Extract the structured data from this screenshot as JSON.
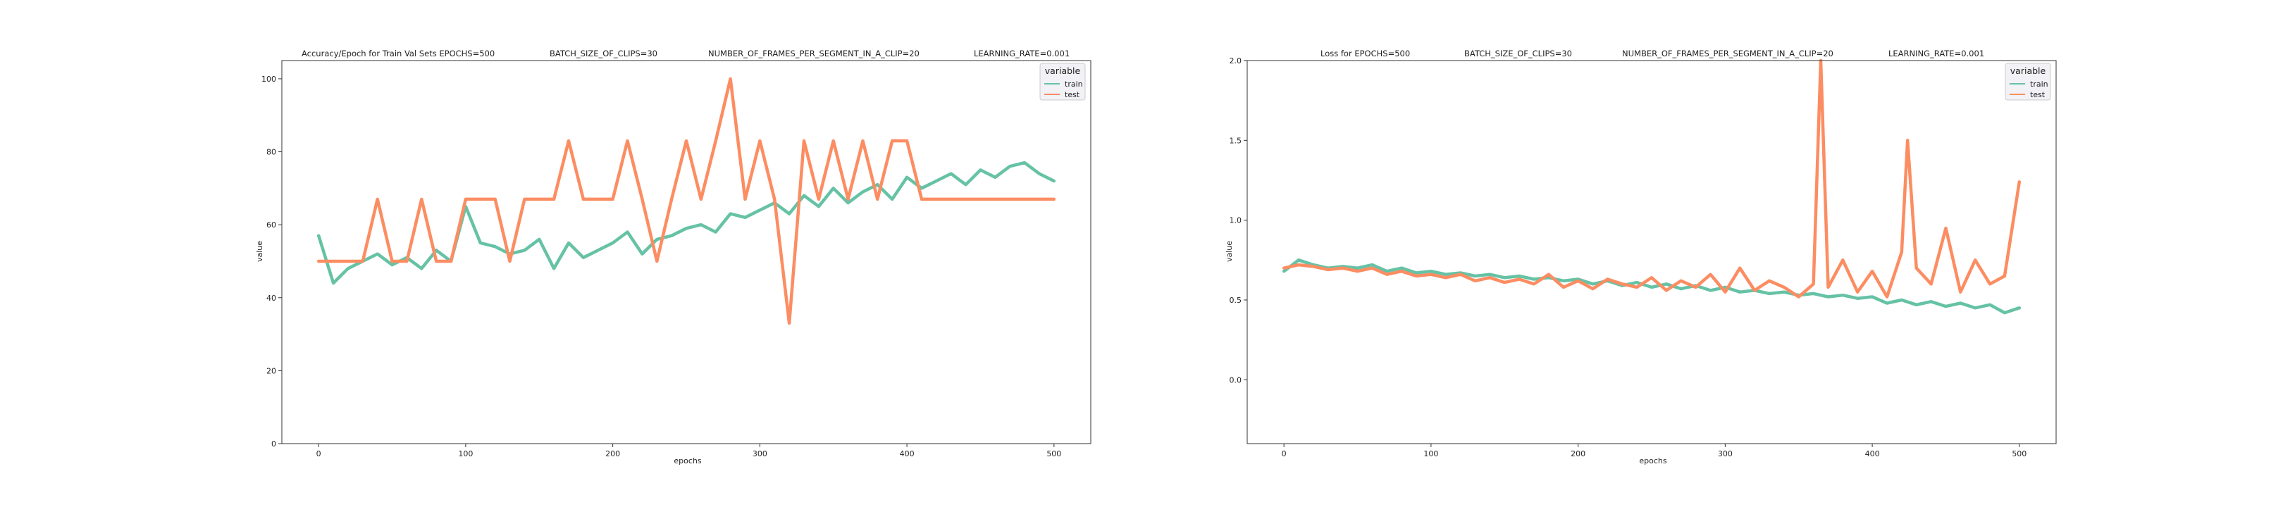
{
  "chart_data": [
    {
      "type": "line",
      "title_parts": [
        "Accuracy/Epoch for Train Val Sets EPOCHS=500",
        "BATCH_SIZE_OF_CLIPS=30",
        "NUMBER_OF_FRAMES_PER_SEGMENT_IN_A_CLIP=20",
        "LEARNING_RATE=0.001"
      ],
      "xlabel": "epochs",
      "ylabel": "value",
      "xlim": [
        -25,
        525
      ],
      "ylim": [
        0,
        105
      ],
      "xticks": [
        0,
        100,
        200,
        300,
        400,
        500
      ],
      "yticks": [
        0,
        20,
        40,
        60,
        80,
        100
      ],
      "ytick_labels": [
        "0",
        "20",
        "40",
        "60",
        "80",
        "100"
      ],
      "grid": false,
      "legend": {
        "title": "variable",
        "placement": "top-right"
      },
      "series": [
        {
          "name": "train",
          "color": "#66c2a5",
          "x": [
            0,
            10,
            20,
            30,
            40,
            50,
            60,
            70,
            80,
            90,
            100,
            110,
            120,
            130,
            140,
            150,
            160,
            170,
            180,
            190,
            200,
            210,
            220,
            230,
            240,
            250,
            260,
            270,
            280,
            290,
            300,
            310,
            320,
            330,
            340,
            350,
            360,
            370,
            380,
            390,
            400,
            410,
            420,
            430,
            440,
            450,
            460,
            470,
            480,
            490,
            500
          ],
          "values": [
            57,
            44,
            48,
            50,
            52,
            49,
            51,
            48,
            53,
            50,
            65,
            55,
            54,
            52,
            53,
            56,
            48,
            55,
            51,
            53,
            55,
            58,
            52,
            56,
            57,
            59,
            60,
            58,
            63,
            62,
            64,
            66,
            63,
            68,
            65,
            70,
            66,
            69,
            71,
            67,
            73,
            70,
            72,
            74,
            71,
            75,
            73,
            76,
            77,
            74,
            72
          ]
        },
        {
          "name": "test",
          "color": "#fc8d62",
          "x": [
            0,
            10,
            20,
            30,
            40,
            50,
            60,
            70,
            80,
            90,
            100,
            110,
            120,
            130,
            140,
            150,
            160,
            170,
            180,
            190,
            200,
            210,
            220,
            230,
            240,
            250,
            260,
            270,
            280,
            290,
            300,
            310,
            320,
            330,
            340,
            350,
            360,
            370,
            380,
            390,
            400,
            410,
            420,
            430,
            440,
            450,
            460,
            470,
            480,
            490,
            500
          ],
          "values": [
            50,
            50,
            50,
            50,
            67,
            50,
            50,
            67,
            50,
            50,
            67,
            67,
            67,
            50,
            67,
            67,
            67,
            83,
            67,
            67,
            67,
            83,
            67,
            50,
            67,
            83,
            67,
            83,
            100,
            67,
            83,
            67,
            33,
            83,
            67,
            83,
            67,
            83,
            67,
            83,
            83,
            67,
            67,
            67,
            67,
            67,
            67,
            67,
            67,
            67,
            67
          ]
        }
      ]
    },
    {
      "type": "line",
      "title_parts": [
        "Loss for  EPOCHS=500",
        "BATCH_SIZE_OF_CLIPS=30",
        "NUMBER_OF_FRAMES_PER_SEGMENT_IN_A_CLIP=20",
        "LEARNING_RATE=0.001"
      ],
      "xlabel": "epochs",
      "ylabel": "value",
      "xlim": [
        -25,
        525
      ],
      "ylim": [
        -0.4,
        2.0
      ],
      "xticks": [
        0,
        100,
        200,
        300,
        400,
        500
      ],
      "yticks": [
        0.0,
        0.5,
        1.0,
        1.5,
        2.0
      ],
      "ytick_labels": [
        "0.0",
        "0.5",
        "1.0",
        "1.5",
        "2.0"
      ],
      "grid": false,
      "legend": {
        "title": "variable",
        "placement": "top-right"
      },
      "series": [
        {
          "name": "train",
          "color": "#66c2a5",
          "x": [
            0,
            10,
            20,
            30,
            40,
            50,
            60,
            70,
            80,
            90,
            100,
            110,
            120,
            130,
            140,
            150,
            160,
            170,
            180,
            190,
            200,
            210,
            220,
            230,
            240,
            250,
            260,
            270,
            280,
            290,
            300,
            310,
            320,
            330,
            340,
            350,
            360,
            370,
            380,
            390,
            400,
            410,
            420,
            430,
            440,
            450,
            460,
            470,
            480,
            490,
            500
          ],
          "values": [
            0.68,
            0.75,
            0.72,
            0.7,
            0.71,
            0.7,
            0.72,
            0.68,
            0.7,
            0.67,
            0.68,
            0.66,
            0.67,
            0.65,
            0.66,
            0.64,
            0.65,
            0.63,
            0.64,
            0.62,
            0.63,
            0.6,
            0.62,
            0.59,
            0.61,
            0.58,
            0.6,
            0.57,
            0.59,
            0.56,
            0.58,
            0.55,
            0.56,
            0.54,
            0.55,
            0.53,
            0.54,
            0.52,
            0.53,
            0.51,
            0.52,
            0.48,
            0.5,
            0.47,
            0.49,
            0.46,
            0.48,
            0.45,
            0.47,
            0.42,
            0.45
          ]
        },
        {
          "name": "test",
          "color": "#fc8d62",
          "x": [
            0,
            10,
            20,
            30,
            40,
            50,
            60,
            70,
            80,
            90,
            100,
            110,
            120,
            130,
            140,
            150,
            160,
            170,
            180,
            190,
            200,
            210,
            220,
            230,
            240,
            250,
            260,
            270,
            280,
            290,
            300,
            310,
            320,
            330,
            340,
            350,
            360,
            365,
            370,
            380,
            390,
            400,
            410,
            420,
            424,
            430,
            440,
            450,
            460,
            470,
            480,
            490,
            500
          ],
          "values": [
            0.7,
            0.72,
            0.71,
            0.69,
            0.7,
            0.68,
            0.7,
            0.66,
            0.68,
            0.65,
            0.66,
            0.64,
            0.66,
            0.62,
            0.64,
            0.61,
            0.63,
            0.6,
            0.66,
            0.58,
            0.62,
            0.57,
            0.63,
            0.6,
            0.58,
            0.64,
            0.56,
            0.62,
            0.58,
            0.66,
            0.55,
            0.7,
            0.56,
            0.62,
            0.58,
            0.52,
            0.6,
            2.0,
            0.58,
            0.75,
            0.55,
            0.68,
            0.52,
            0.8,
            1.5,
            0.7,
            0.6,
            0.95,
            0.55,
            0.75,
            0.6,
            0.65,
            1.24
          ]
        }
      ]
    }
  ]
}
